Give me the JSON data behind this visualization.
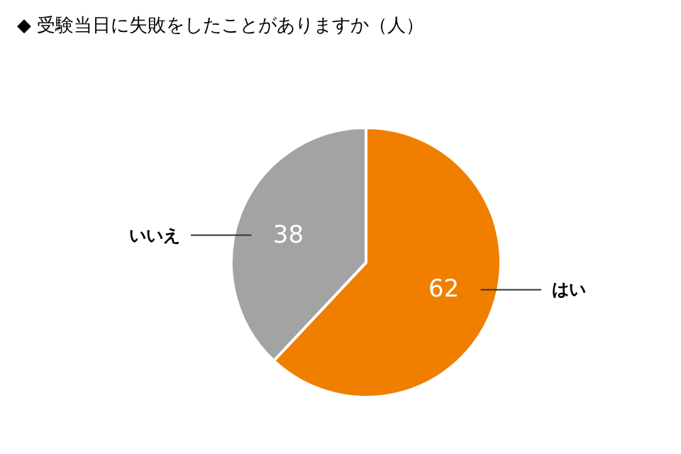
{
  "chart_data": {
    "type": "pie",
    "title": "◆ 受験当日に失敗をしたことがありますか（人）",
    "categories": [
      "はい",
      "いいえ"
    ],
    "values": [
      62,
      38
    ],
    "colors": [
      "#f07f00",
      "#a3a3a3"
    ],
    "data_labels": true
  }
}
